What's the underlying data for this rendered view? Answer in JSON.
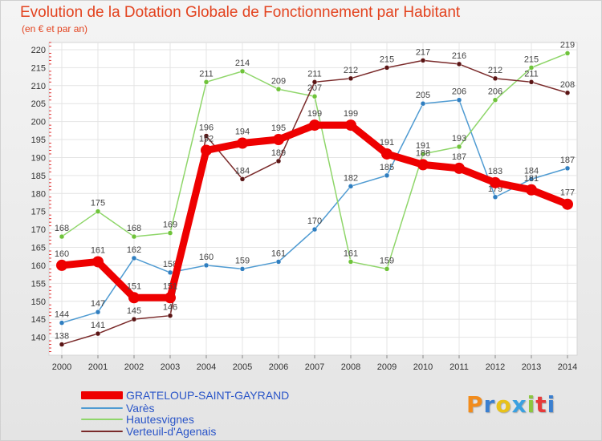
{
  "chart_data": {
    "type": "line",
    "title": "Evolution de la Dotation Globale de Fonctionnement par Habitant",
    "subtitle": "(en € et par an)",
    "xlabel": "",
    "ylabel": "",
    "grid": true,
    "ylim": [
      135,
      222
    ],
    "yticks": [
      140,
      145,
      150,
      155,
      160,
      165,
      170,
      175,
      180,
      185,
      190,
      195,
      200,
      205,
      210,
      215,
      220
    ],
    "categories": [
      "2000",
      "2001",
      "2002",
      "2003",
      "2004",
      "2005",
      "2006",
      "2007",
      "2008",
      "2009",
      "2010",
      "2011",
      "2012",
      "2013",
      "2014"
    ],
    "series": [
      {
        "name": "Varès",
        "color": "#4f9bd2",
        "marker": "#2f7ec0",
        "values": [
          144,
          147,
          162,
          158,
          160,
          159,
          161,
          170,
          182,
          185,
          205,
          206,
          179,
          184,
          187
        ],
        "labels": [
          "144",
          "147",
          "162",
          "158",
          "160",
          "159",
          "161",
          "170",
          "182",
          "185",
          "205",
          "206",
          "179",
          "184",
          "187"
        ]
      },
      {
        "name": "Hautesvignes",
        "color": "#8fd66a",
        "marker": "#6fc33a",
        "values": [
          168,
          175,
          168,
          169,
          211,
          214,
          209,
          207,
          161,
          159,
          191,
          193,
          206,
          215,
          219
        ],
        "labels": [
          "168",
          "175",
          "168",
          "169",
          "211",
          "214",
          "209",
          "207",
          "161",
          "159",
          "191",
          "193",
          "206",
          "215",
          "219"
        ]
      },
      {
        "name": "Verteuil-d'Agenais",
        "color": "#7a2a2a",
        "marker": "#5a1414",
        "values": [
          138,
          141,
          145,
          146,
          196,
          184,
          189,
          211,
          212,
          215,
          217,
          216,
          212,
          211,
          208
        ],
        "labels": [
          "138",
          "141",
          "145",
          "146",
          "196",
          "184",
          "189",
          "211",
          "212",
          "215",
          "217",
          "216",
          "212",
          "211",
          "208"
        ]
      },
      {
        "name": "GRATELOUP-SAINT-GAYRAND",
        "color": "#ee0000",
        "marker": "#ee0000",
        "values": [
          160,
          161,
          151,
          151,
          192,
          194,
          195,
          199,
          199,
          191,
          188,
          187,
          183,
          181,
          177
        ],
        "labels": [
          "160",
          "161",
          "151",
          "151",
          "192",
          "194",
          "195",
          "199",
          "199",
          "191",
          "188",
          "187",
          "183",
          "181",
          "177"
        ]
      }
    ],
    "legend": {
      "position": "bottom-left",
      "entries": [
        "GRATELOUP-SAINT-GAYRAND",
        "Varès",
        "Hautesvignes",
        "Verteuil-d'Agenais"
      ]
    }
  },
  "legend_colors": [
    "#ee0000",
    "#4f9bd2",
    "#8fd66a",
    "#7a2a2a"
  ],
  "logo": {
    "text": "Proxiti"
  }
}
